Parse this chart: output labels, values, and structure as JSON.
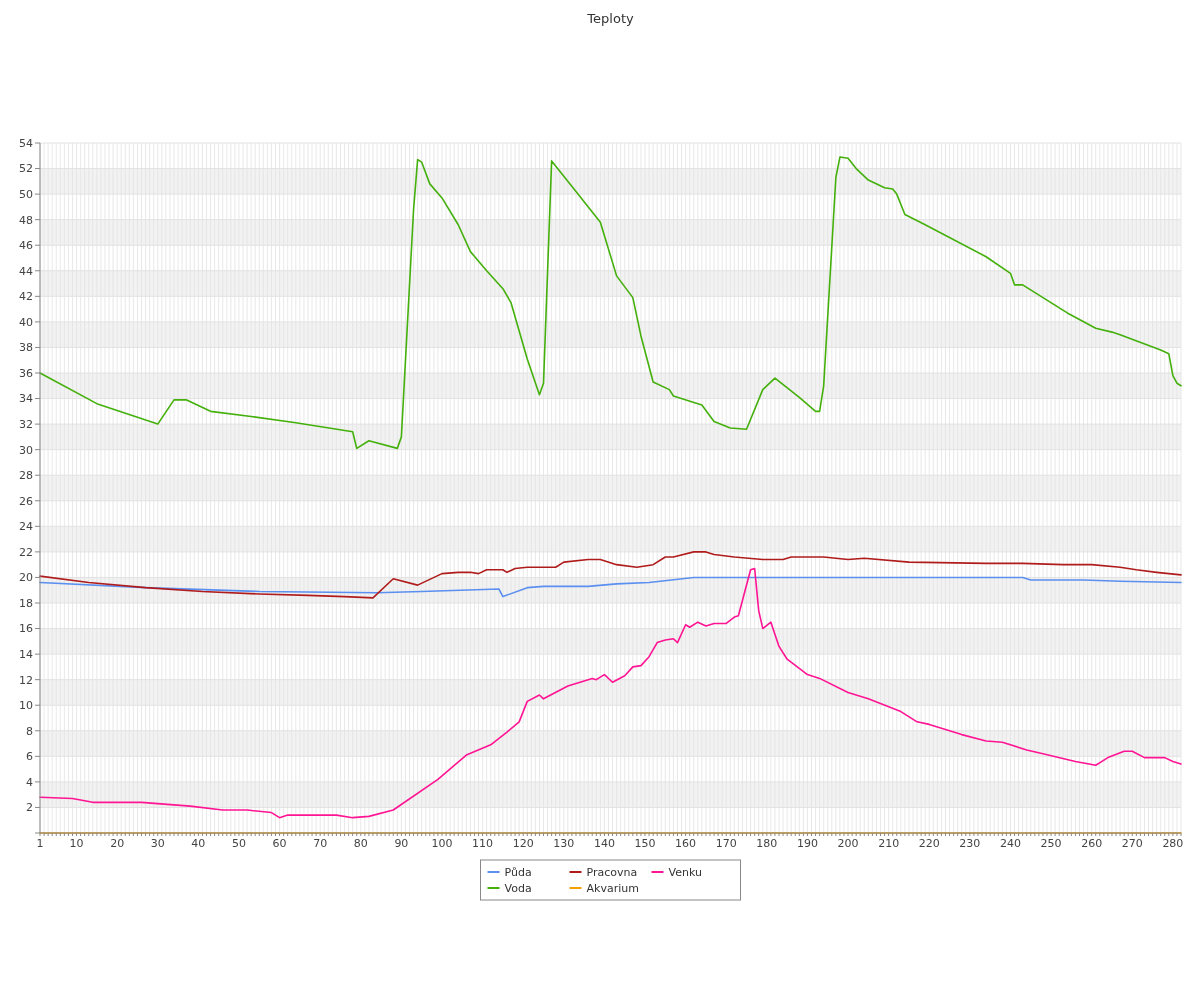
{
  "chart_data": {
    "type": "line",
    "title": "Teploty",
    "legend": "bottom",
    "grid": true,
    "marker": "none",
    "line_style": "solid",
    "xlim": [
      1,
      282
    ],
    "xticks": [
      1,
      {
        "value": 2,
        "label": null
      },
      {
        "value": 3,
        "label": null
      },
      {
        "value": 4,
        "label": null
      },
      {
        "value": 5,
        "label": null
      },
      {
        "value": 6,
        "label": null
      },
      {
        "value": 7,
        "label": null
      },
      {
        "value": 8,
        "label": null
      },
      {
        "value": 9,
        "label": null
      },
      10,
      {
        "value": 11,
        "label": null
      },
      {
        "value": 12,
        "label": null
      },
      {
        "value": 13,
        "label": null
      },
      {
        "value": 14,
        "label": null
      },
      {
        "value": 15,
        "label": null
      },
      {
        "value": 16,
        "label": null
      },
      {
        "value": 17,
        "label": null
      },
      {
        "value": 18,
        "label": null
      },
      {
        "value": 19,
        "label": null
      },
      20,
      {
        "value": 21,
        "label": null
      },
      {
        "value": 22,
        "label": null
      },
      {
        "value": 23,
        "label": null
      },
      {
        "value": 24,
        "label": null
      },
      {
        "value": 25,
        "label": null
      },
      {
        "value": 26,
        "label": null
      },
      {
        "value": 27,
        "label": null
      },
      {
        "value": 28,
        "label": null
      },
      {
        "value": 29,
        "label": null
      },
      30,
      {
        "value": 31,
        "label": null
      },
      {
        "value": 32,
        "label": null
      },
      {
        "value": 33,
        "label": null
      },
      {
        "value": 34,
        "label": null
      },
      {
        "value": 35,
        "label": null
      },
      {
        "value": 36,
        "label": null
      },
      {
        "value": 37,
        "label": null
      },
      {
        "value": 38,
        "label": null
      },
      {
        "value": 39,
        "label": null
      },
      40,
      {
        "value": 41,
        "label": null
      },
      {
        "value": 42,
        "label": null
      },
      {
        "value": 43,
        "label": null
      },
      {
        "value": 44,
        "label": null
      },
      {
        "value": 45,
        "label": null
      },
      {
        "value": 46,
        "label": null
      },
      {
        "value": 47,
        "label": null
      },
      {
        "value": 48,
        "label": null
      },
      {
        "value": 49,
        "label": null
      },
      50,
      {
        "value": 51,
        "label": null
      },
      {
        "value": 52,
        "label": null
      },
      {
        "value": 53,
        "label": null
      },
      {
        "value": 54,
        "label": null
      },
      {
        "value": 55,
        "label": null
      },
      {
        "value": 56,
        "label": null
      },
      {
        "value": 57,
        "label": null
      },
      {
        "value": 58,
        "label": null
      },
      {
        "value": 59,
        "label": null
      },
      60,
      {
        "value": 61,
        "label": null
      },
      {
        "value": 62,
        "label": null
      },
      {
        "value": 63,
        "label": null
      },
      {
        "value": 64,
        "label": null
      },
      {
        "value": 65,
        "label": null
      },
      {
        "value": 66,
        "label": null
      },
      {
        "value": 67,
        "label": null
      },
      {
        "value": 68,
        "label": null
      },
      {
        "value": 69,
        "label": null
      },
      70,
      {
        "value": 71,
        "label": null
      },
      {
        "value": 72,
        "label": null
      },
      {
        "value": 73,
        "label": null
      },
      {
        "value": 74,
        "label": null
      },
      {
        "value": 75,
        "label": null
      },
      {
        "value": 76,
        "label": null
      },
      {
        "value": 77,
        "label": null
      },
      {
        "value": 78,
        "label": null
      },
      {
        "value": 79,
        "label": null
      },
      80,
      {
        "value": 81,
        "label": null
      },
      {
        "value": 82,
        "label": null
      },
      {
        "value": 83,
        "label": null
      },
      {
        "value": 84,
        "label": null
      },
      {
        "value": 85,
        "label": null
      },
      {
        "value": 86,
        "label": null
      },
      {
        "value": 87,
        "label": null
      },
      {
        "value": 88,
        "label": null
      },
      {
        "value": 89,
        "label": null
      },
      90,
      {
        "value": 91,
        "label": null
      },
      {
        "value": 92,
        "label": null
      },
      {
        "value": 93,
        "label": null
      },
      {
        "value": 94,
        "label": null
      },
      {
        "value": 95,
        "label": null
      },
      {
        "value": 96,
        "label": null
      },
      {
        "value": 97,
        "label": null
      },
      {
        "value": 98,
        "label": null
      },
      {
        "value": 99,
        "label": null
      },
      100,
      {
        "value": 101,
        "label": null
      },
      {
        "value": 102,
        "label": null
      },
      {
        "value": 103,
        "label": null
      },
      {
        "value": 104,
        "label": null
      },
      {
        "value": 105,
        "label": null
      },
      {
        "value": 106,
        "label": null
      },
      {
        "value": 107,
        "label": null
      },
      {
        "value": 108,
        "label": null
      },
      {
        "value": 109,
        "label": null
      },
      110,
      {
        "value": 111,
        "label": null
      },
      {
        "value": 112,
        "label": null
      },
      {
        "value": 113,
        "label": null
      },
      {
        "value": 114,
        "label": null
      },
      {
        "value": 115,
        "label": null
      },
      {
        "value": 116,
        "label": null
      },
      {
        "value": 117,
        "label": null
      },
      {
        "value": 118,
        "label": null
      },
      {
        "value": 119,
        "label": null
      },
      120,
      {
        "value": 121,
        "label": null
      },
      {
        "value": 122,
        "label": null
      },
      {
        "value": 123,
        "label": null
      },
      {
        "value": 124,
        "label": null
      },
      {
        "value": 125,
        "label": null
      },
      {
        "value": 126,
        "label": null
      },
      {
        "value": 127,
        "label": null
      },
      {
        "value": 128,
        "label": null
      },
      {
        "value": 129,
        "label": null
      },
      130,
      {
        "value": 131,
        "label": null
      },
      {
        "value": 132,
        "label": null
      },
      {
        "value": 133,
        "label": null
      },
      {
        "value": 134,
        "label": null
      },
      {
        "value": 135,
        "label": null
      },
      {
        "value": 136,
        "label": null
      },
      {
        "value": 137,
        "label": null
      },
      {
        "value": 138,
        "label": null
      },
      {
        "value": 139,
        "label": null
      },
      140,
      {
        "value": 141,
        "label": null
      },
      {
        "value": 142,
        "label": null
      },
      {
        "value": 143,
        "label": null
      },
      {
        "value": 144,
        "label": null
      },
      {
        "value": 145,
        "label": null
      },
      {
        "value": 146,
        "label": null
      },
      {
        "value": 147,
        "label": null
      },
      {
        "value": 148,
        "label": null
      },
      {
        "value": 149,
        "label": null
      },
      150,
      {
        "value": 151,
        "label": null
      },
      {
        "value": 152,
        "label": null
      },
      {
        "value": 153,
        "label": null
      },
      {
        "value": 154,
        "label": null
      },
      {
        "value": 155,
        "label": null
      },
      {
        "value": 156,
        "label": null
      },
      {
        "value": 157,
        "label": null
      },
      {
        "value": 158,
        "label": null
      },
      {
        "value": 159,
        "label": null
      },
      160,
      {
        "value": 161,
        "label": null
      },
      {
        "value": 162,
        "label": null
      },
      {
        "value": 163,
        "label": null
      },
      {
        "value": 164,
        "label": null
      },
      {
        "value": 165,
        "label": null
      },
      {
        "value": 166,
        "label": null
      },
      {
        "value": 167,
        "label": null
      },
      {
        "value": 168,
        "label": null
      },
      {
        "value": 169,
        "label": null
      },
      170,
      {
        "value": 171,
        "label": null
      },
      {
        "value": 172,
        "label": null
      },
      {
        "value": 173,
        "label": null
      },
      {
        "value": 174,
        "label": null
      },
      {
        "value": 175,
        "label": null
      },
      {
        "value": 176,
        "label": null
      },
      {
        "value": 177,
        "label": null
      },
      {
        "value": 178,
        "label": null
      },
      {
        "value": 179,
        "label": null
      },
      180,
      {
        "value": 181,
        "label": null
      },
      {
        "value": 182,
        "label": null
      },
      {
        "value": 183,
        "label": null
      },
      {
        "value": 184,
        "label": null
      },
      {
        "value": 185,
        "label": null
      },
      {
        "value": 186,
        "label": null
      },
      {
        "value": 187,
        "label": null
      },
      {
        "value": 188,
        "label": null
      },
      {
        "value": 189,
        "label": null
      },
      190,
      {
        "value": 191,
        "label": null
      },
      {
        "value": 192,
        "label": null
      },
      {
        "value": 193,
        "label": null
      },
      {
        "value": 194,
        "label": null
      },
      {
        "value": 195,
        "label": null
      },
      {
        "value": 196,
        "label": null
      },
      {
        "value": 197,
        "label": null
      },
      {
        "value": 198,
        "label": null
      },
      {
        "value": 199,
        "label": null
      },
      200,
      {
        "value": 201,
        "label": null
      },
      {
        "value": 202,
        "label": null
      },
      {
        "value": 203,
        "label": null
      },
      {
        "value": 204,
        "label": null
      },
      {
        "value": 205,
        "label": null
      },
      {
        "value": 206,
        "label": null
      },
      {
        "value": 207,
        "label": null
      },
      {
        "value": 208,
        "label": null
      },
      {
        "value": 209,
        "label": null
      },
      210,
      {
        "value": 211,
        "label": null
      },
      {
        "value": 212,
        "label": null
      },
      {
        "value": 213,
        "label": null
      },
      {
        "value": 214,
        "label": null
      },
      {
        "value": 215,
        "label": null
      },
      {
        "value": 216,
        "label": null
      },
      {
        "value": 217,
        "label": null
      },
      {
        "value": 218,
        "label": null
      },
      {
        "value": 219,
        "label": null
      },
      220,
      {
        "value": 221,
        "label": null
      },
      {
        "value": 222,
        "label": null
      },
      {
        "value": 223,
        "label": null
      },
      {
        "value": 224,
        "label": null
      },
      {
        "value": 225,
        "label": null
      },
      {
        "value": 226,
        "label": null
      },
      {
        "value": 227,
        "label": null
      },
      {
        "value": 228,
        "label": null
      },
      {
        "value": 229,
        "label": null
      },
      230,
      {
        "value": 231,
        "label": null
      },
      {
        "value": 232,
        "label": null
      },
      {
        "value": 233,
        "label": null
      },
      {
        "value": 234,
        "label": null
      },
      {
        "value": 235,
        "label": null
      },
      {
        "value": 236,
        "label": null
      },
      {
        "value": 237,
        "label": null
      },
      {
        "value": 238,
        "label": null
      },
      {
        "value": 239,
        "label": null
      },
      240,
      {
        "value": 241,
        "label": null
      },
      {
        "value": 242,
        "label": null
      },
      {
        "value": 243,
        "label": null
      },
      {
        "value": 244,
        "label": null
      },
      {
        "value": 245,
        "label": null
      },
      {
        "value": 246,
        "label": null
      },
      {
        "value": 247,
        "label": null
      },
      {
        "value": 248,
        "label": null
      },
      {
        "value": 249,
        "label": null
      },
      250,
      {
        "value": 251,
        "label": null
      },
      {
        "value": 252,
        "label": null
      },
      {
        "value": 253,
        "label": null
      },
      {
        "value": 254,
        "label": null
      },
      {
        "value": 255,
        "label": null
      },
      {
        "value": 256,
        "label": null
      },
      {
        "value": 257,
        "label": null
      },
      {
        "value": 258,
        "label": null
      },
      {
        "value": 259,
        "label": null
      },
      260,
      {
        "value": 261,
        "label": null
      },
      {
        "value": 262,
        "label": null
      },
      {
        "value": 263,
        "label": null
      },
      {
        "value": 264,
        "label": null
      },
      {
        "value": 265,
        "label": null
      },
      {
        "value": 266,
        "label": null
      },
      {
        "value": 267,
        "label": null
      },
      {
        "value": 268,
        "label": null
      },
      {
        "value": 269,
        "label": null
      },
      270,
      {
        "value": 271,
        "label": null
      },
      {
        "value": 272,
        "label": null
      },
      {
        "value": 273,
        "label": null
      },
      {
        "value": 274,
        "label": null
      },
      {
        "value": 275,
        "label": null
      },
      {
        "value": 276,
        "label": null
      },
      {
        "value": 277,
        "label": null
      },
      {
        "value": 278,
        "label": null
      },
      {
        "value": 279,
        "label": null
      },
      280,
      {
        "value": 281,
        "label": null
      },
      {
        "value": 282,
        "label": null
      }
    ],
    "ylim": [
      0,
      54
    ],
    "yticks": [
      {
        "value": 0,
        "label": null
      },
      2,
      4,
      6,
      8,
      10,
      12,
      14,
      16,
      18,
      20,
      22,
      24,
      26,
      28,
      30,
      32,
      34,
      36,
      38,
      40,
      42,
      44,
      46,
      48,
      50,
      52,
      54
    ],
    "series": [
      {
        "name": "Půda",
        "color": "#5b8ff0",
        "x": [
          1,
          27,
          55,
          84,
          95,
          114,
          115,
          121,
          125,
          136,
          143,
          151,
          162,
          243,
          245,
          258,
          267,
          282
        ],
        "values": [
          19.6,
          19.2,
          18.9,
          18.8,
          18.9,
          19.1,
          18.5,
          19.2,
          19.3,
          19.3,
          19.5,
          19.6,
          20.0,
          20.0,
          19.8,
          19.8,
          19.7,
          19.6
        ]
      },
      {
        "name": "Voda",
        "color": "#44b00c",
        "x": [
          1,
          15,
          30,
          34,
          37,
          43,
          53,
          64,
          78,
          79,
          82,
          89,
          90,
          93,
          94,
          95,
          97,
          100,
          104,
          107,
          111,
          115,
          117,
          121,
          124,
          125,
          127,
          133,
          139,
          143,
          147,
          149,
          152,
          156,
          157,
          164,
          167,
          171,
          175,
          179,
          182,
          188,
          192,
          193,
          194,
          197,
          198,
          200,
          202,
          205,
          209,
          211,
          212,
          214,
          219,
          234,
          240,
          241,
          243,
          254,
          261,
          265,
          267,
          277,
          279,
          280,
          281,
          282
        ],
        "values": [
          36.0,
          33.6,
          32.0,
          33.9,
          33.9,
          33.0,
          32.6,
          32.1,
          31.4,
          30.1,
          30.7,
          30.1,
          31.0,
          48.8,
          52.7,
          52.5,
          50.8,
          49.7,
          47.6,
          45.5,
          44.0,
          42.6,
          41.5,
          37.1,
          34.3,
          35.2,
          52.6,
          50.2,
          47.8,
          43.6,
          41.9,
          38.9,
          35.3,
          34.7,
          34.2,
          33.5,
          32.2,
          31.7,
          31.6,
          34.7,
          35.6,
          34.1,
          33.0,
          33.0,
          35.0,
          51.3,
          52.9,
          52.8,
          52.0,
          51.1,
          50.5,
          50.4,
          50.0,
          48.4,
          47.6,
          45.1,
          43.8,
          42.9,
          42.9,
          40.7,
          39.5,
          39.2,
          39.0,
          37.8,
          37.5,
          35.8,
          35.2,
          35.0
        ]
      },
      {
        "name": "Pracovna",
        "color": "#b01c1c",
        "x": [
          1,
          13,
          27,
          41,
          55,
          67,
          76,
          83,
          88,
          94,
          100,
          104,
          107,
          109,
          111,
          115,
          116,
          118,
          121,
          128,
          130,
          136,
          139,
          143,
          148,
          152,
          155,
          157,
          162,
          165,
          167,
          172,
          179,
          184,
          186,
          194,
          200,
          204,
          215,
          234,
          243,
          253,
          260,
          267,
          271,
          276,
          279,
          282
        ],
        "values": [
          20.1,
          19.6,
          19.2,
          18.9,
          18.7,
          18.6,
          18.5,
          18.4,
          19.9,
          19.4,
          20.3,
          20.4,
          20.4,
          20.3,
          20.6,
          20.6,
          20.4,
          20.7,
          20.8,
          20.8,
          21.2,
          21.4,
          21.4,
          21.0,
          20.8,
          21.0,
          21.6,
          21.6,
          22.0,
          22.0,
          21.8,
          21.6,
          21.4,
          21.4,
          21.6,
          21.6,
          21.4,
          21.5,
          21.2,
          21.1,
          21.1,
          21.0,
          21.0,
          20.8,
          20.6,
          20.4,
          20.3,
          20.2
        ]
      },
      {
        "name": "Akvarium",
        "color": "#f5a000",
        "x": [
          1,
          282
        ],
        "values": [
          0,
          0
        ]
      },
      {
        "name": "Venku",
        "color": "#ff1493",
        "x": [
          1,
          9,
          14,
          26,
          38,
          46,
          52,
          58,
          60,
          62,
          74,
          78,
          82,
          88,
          99,
          106,
          112,
          116,
          119,
          121,
          124,
          125,
          131,
          137,
          138,
          140,
          142,
          145,
          147,
          149,
          151,
          153,
          155,
          157,
          158,
          160,
          161,
          163,
          165,
          167,
          170,
          172,
          173,
          176,
          177,
          178,
          179,
          181,
          183,
          185,
          190,
          193,
          200,
          205,
          213,
          217,
          220,
          228,
          234,
          238,
          244,
          248,
          256,
          261,
          264,
          268,
          270,
          273,
          278,
          280,
          282
        ],
        "values": [
          2.8,
          2.7,
          2.4,
          2.4,
          2.1,
          1.8,
          1.8,
          1.6,
          1.2,
          1.4,
          1.4,
          1.2,
          1.3,
          1.8,
          4.2,
          6.1,
          6.9,
          7.9,
          8.7,
          10.3,
          10.8,
          10.5,
          11.5,
          12.1,
          12.0,
          12.4,
          11.8,
          12.3,
          13.0,
          13.1,
          13.8,
          14.9,
          15.1,
          15.2,
          14.9,
          16.3,
          16.1,
          16.5,
          16.2,
          16.4,
          16.4,
          16.9,
          17.0,
          20.6,
          20.7,
          17.4,
          16.0,
          16.5,
          14.6,
          13.6,
          12.4,
          12.1,
          11.0,
          10.5,
          9.5,
          8.7,
          8.5,
          7.7,
          7.2,
          7.1,
          6.5,
          6.2,
          5.6,
          5.3,
          5.9,
          6.4,
          6.4,
          5.9,
          5.9,
          5.6,
          5.4
        ]
      }
    ]
  }
}
